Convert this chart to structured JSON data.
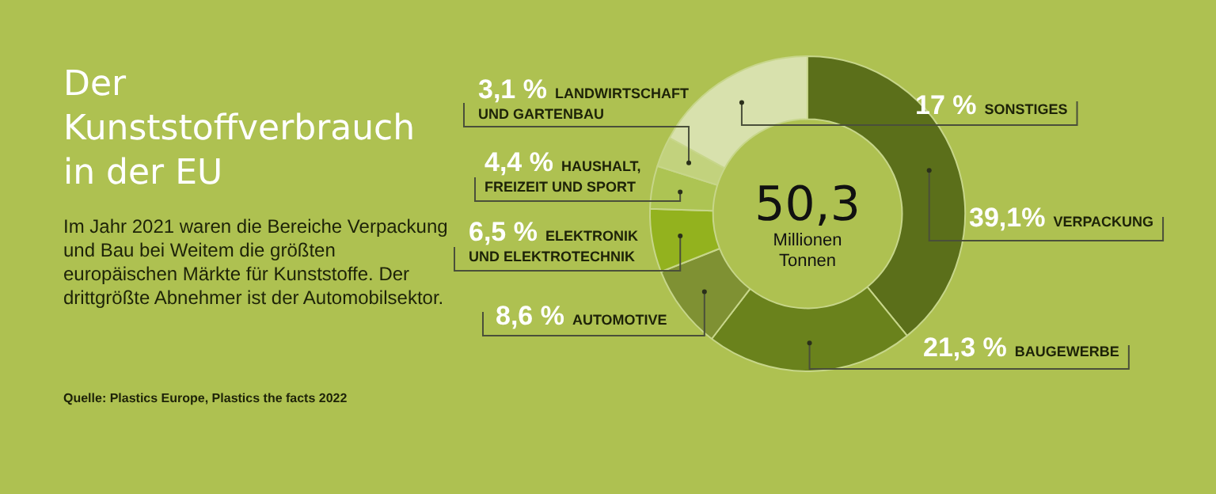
{
  "chart_data": {
    "type": "donut",
    "title": "Der Kunststoffverbrauch in der EU",
    "subtitle": "Im Jahr 2021 waren die Bereiche Verpackung und Bau bei Weitem die größten europäischen Märkte für Kunststoffe. Der drittgrößte Abnehmer ist der Automobilsektor.",
    "categories": [
      "VERPACKUNG",
      "BAUGEWERBE",
      "AUTOMOTIVE",
      "ELEKTRONIK UND ELEKTROTECHNIK",
      "HAUSHALT, FREIZEIT UND SPORT",
      "LANDWIRTSCHAFT UND GARTENBAU",
      "SONSTIGES"
    ],
    "values": [
      39.1,
      21.3,
      8.6,
      6.5,
      4.4,
      3.1,
      17
    ],
    "value_labels": [
      "39,1%",
      "21,3 %",
      "8,6 %",
      "6,5 %",
      "4,4 %",
      "3,1 %",
      "17 %"
    ],
    "colors": [
      "#5b6f1a",
      "#6a821c",
      "#7f9133",
      "#93b21e",
      "#adc453",
      "#c2d27d",
      "#d8e1ad"
    ],
    "annotations": [
      "50,3",
      "Millionen Tonnen",
      "Quelle: Plastics Europe, Plastics the facts 2022"
    ]
  }
}
